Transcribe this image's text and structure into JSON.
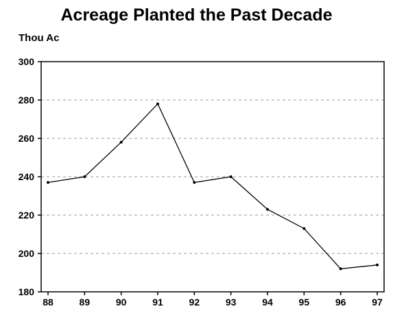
{
  "chart_data": {
    "type": "line",
    "title": "Acreage Planted the Past Decade",
    "ylabel": "Thou Ac",
    "xlabel": "",
    "categories": [
      "88",
      "89",
      "90",
      "91",
      "92",
      "93",
      "94",
      "95",
      "96",
      "97"
    ],
    "series": [
      {
        "values": [
          237,
          240,
          258,
          278,
          237,
          240,
          223,
          213,
          192,
          194
        ]
      }
    ],
    "ylim": [
      180,
      300
    ],
    "yticks": [
      180,
      200,
      220,
      240,
      260,
      280,
      300
    ],
    "grid": "horizontal dashed",
    "legend": "none",
    "colors": {
      "line": "#000000",
      "grid": "#9a9a9a",
      "frame": "#000000"
    }
  }
}
